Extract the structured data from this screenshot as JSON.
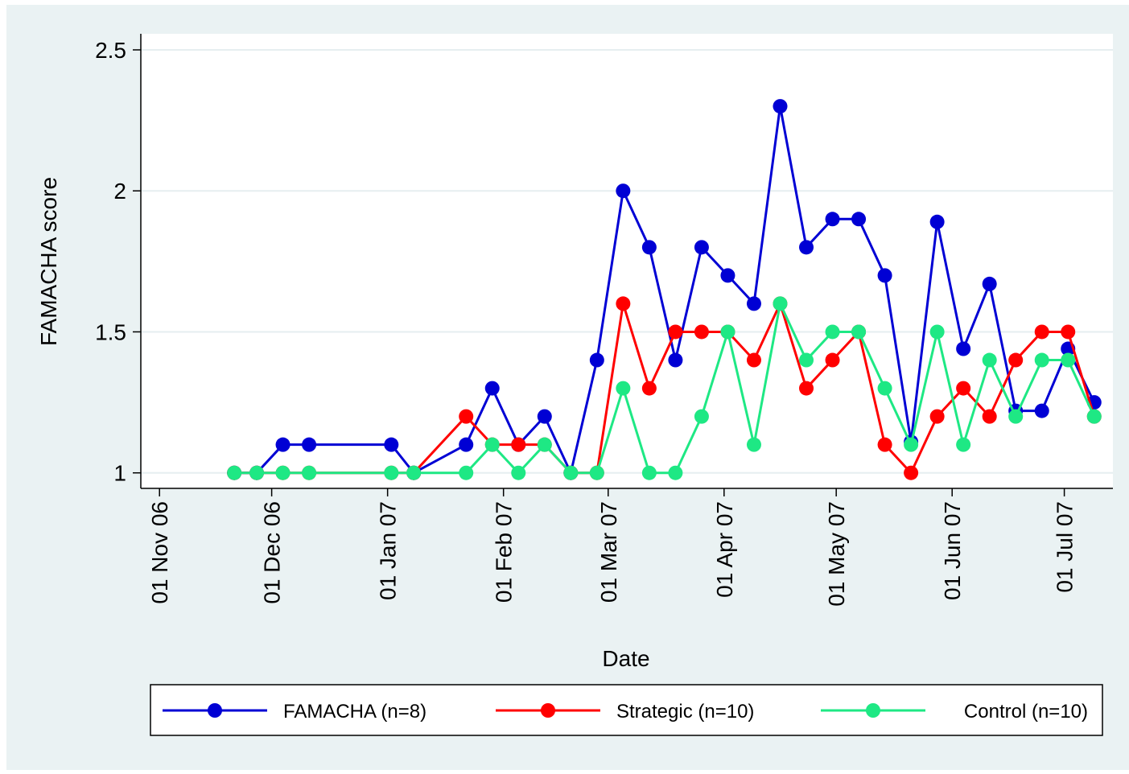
{
  "chart_data": {
    "type": "line",
    "x_label": "Date",
    "y_label": "FAMACHA score",
    "x": [
      "2006-11-21",
      "2006-11-27",
      "2006-12-04",
      "2006-12-11",
      "2007-01-02",
      "2007-01-08",
      "2007-01-22",
      "2007-01-29",
      "2007-02-05",
      "2007-02-12",
      "2007-02-19",
      "2007-02-26",
      "2007-03-05",
      "2007-03-12",
      "2007-03-19",
      "2007-03-26",
      "2007-04-02",
      "2007-04-09",
      "2007-04-16",
      "2007-04-23",
      "2007-04-30",
      "2007-05-07",
      "2007-05-14",
      "2007-05-21",
      "2007-05-28",
      "2007-06-04",
      "2007-06-11",
      "2007-06-18",
      "2007-06-25",
      "2007-07-02",
      "2007-07-09"
    ],
    "series": [
      {
        "name": "FAMACHA (n=8)",
        "color": "#0000d4",
        "values": [
          1,
          1,
          1.1,
          1.1,
          1.1,
          1,
          1.1,
          1.3,
          1.1,
          1.2,
          1,
          1.4,
          2,
          1.8,
          1.4,
          1.8,
          1.7,
          1.6,
          2.3,
          1.8,
          1.9,
          1.9,
          1.7,
          1.11,
          1.89,
          1.44,
          1.67,
          1.22,
          1.22,
          1.44,
          1.25
        ]
      },
      {
        "name": "Strategic (n=10)",
        "color": "#ff0000",
        "values": [
          1,
          1,
          1,
          1,
          1,
          1,
          1.2,
          1.1,
          1.1,
          1.1,
          1,
          1,
          1.6,
          1.3,
          1.5,
          1.5,
          1.5,
          1.4,
          1.6,
          1.3,
          1.4,
          1.5,
          1.1,
          1,
          1.2,
          1.3,
          1.2,
          1.4,
          1.5,
          1.5,
          1.2
        ]
      },
      {
        "name": "Control (n=10)",
        "color": "#1ee884",
        "values": [
          1,
          1,
          1,
          1,
          1,
          1,
          1,
          1.1,
          1,
          1.1,
          1,
          1,
          1.3,
          1,
          1,
          1.2,
          1.5,
          1.1,
          1.6,
          1.4,
          1.5,
          1.5,
          1.3,
          1.1,
          1.5,
          1.1,
          1.4,
          1.2,
          1.4,
          1.4,
          1.2
        ]
      }
    ],
    "xlim": [
      "2006-10-27",
      "2007-07-14"
    ],
    "xticks": [
      {
        "value": "2006-11-01",
        "label": "01 Nov 06"
      },
      {
        "value": "2006-12-01",
        "label": "01 Dec 06"
      },
      {
        "value": "2007-01-01",
        "label": "01 Jan 07"
      },
      {
        "value": "2007-02-01",
        "label": "01 Feb 07"
      },
      {
        "value": "2007-03-01",
        "label": "01 Mar 07"
      },
      {
        "value": "2007-04-01",
        "label": "01 Apr 07"
      },
      {
        "value": "2007-05-01",
        "label": "01 May 07"
      },
      {
        "value": "2007-06-01",
        "label": "01 Jun 07"
      },
      {
        "value": "2007-07-01",
        "label": "01 Jul 07"
      }
    ],
    "ylim": [
      0.945,
      2.557
    ],
    "yticks": [
      1,
      1.5,
      2,
      2.5
    ],
    "grid": true,
    "legend": "bottom"
  }
}
